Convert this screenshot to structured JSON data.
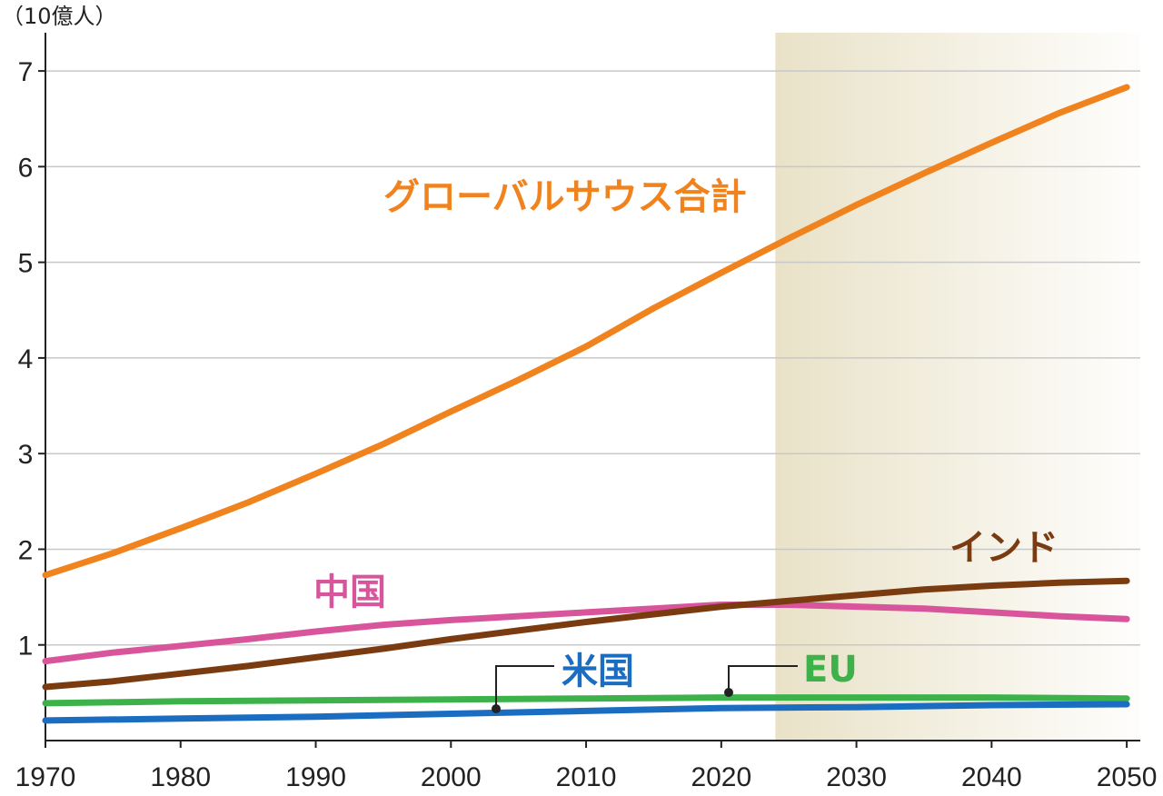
{
  "chart_data": {
    "type": "line",
    "unit_label": "（10億人）",
    "xlim": [
      1970,
      2051
    ],
    "ylim": [
      0,
      7.4
    ],
    "x_ticks": [
      1970,
      1980,
      1990,
      2000,
      2010,
      2020,
      2030,
      2040,
      2050
    ],
    "y_ticks": [
      1,
      2,
      3,
      4,
      5,
      6,
      7
    ],
    "grid": "horizontal",
    "projection_start": 2024,
    "colors": {
      "global_south": "#F0831E",
      "india": "#7A3B10",
      "china": "#D9559B",
      "usa": "#1A6DC0",
      "eu": "#3DB24B",
      "projection_shade": "#E9E2C8"
    },
    "series": [
      {
        "key": "global_south",
        "name": "グローバルサウス合計",
        "x": [
          1970,
          1975,
          1980,
          1985,
          1990,
          1995,
          2000,
          2005,
          2010,
          2015,
          2020,
          2025,
          2030,
          2035,
          2040,
          2045,
          2050
        ],
        "values": [
          1.73,
          1.96,
          2.22,
          2.49,
          2.79,
          3.1,
          3.44,
          3.77,
          4.12,
          4.52,
          4.89,
          5.25,
          5.6,
          5.93,
          6.25,
          6.56,
          6.83
        ]
      },
      {
        "key": "india",
        "name": "インド",
        "x": [
          1970,
          1975,
          1980,
          1985,
          1990,
          1995,
          2000,
          2005,
          2010,
          2015,
          2020,
          2025,
          2030,
          2035,
          2040,
          2045,
          2050
        ],
        "values": [
          0.56,
          0.62,
          0.7,
          0.78,
          0.87,
          0.96,
          1.06,
          1.15,
          1.24,
          1.32,
          1.4,
          1.46,
          1.52,
          1.58,
          1.62,
          1.65,
          1.67
        ]
      },
      {
        "key": "china",
        "name": "中国",
        "x": [
          1970,
          1975,
          1980,
          1985,
          1990,
          1995,
          2000,
          2005,
          2010,
          2015,
          2020,
          2025,
          2030,
          2035,
          2040,
          2045,
          2050
        ],
        "values": [
          0.83,
          0.92,
          0.99,
          1.06,
          1.14,
          1.21,
          1.26,
          1.3,
          1.34,
          1.38,
          1.42,
          1.42,
          1.4,
          1.38,
          1.34,
          1.3,
          1.27
        ]
      },
      {
        "key": "usa",
        "name": "米国",
        "x": [
          1970,
          1980,
          1990,
          2000,
          2010,
          2020,
          2030,
          2040,
          2050
        ],
        "values": [
          0.21,
          0.23,
          0.25,
          0.28,
          0.31,
          0.34,
          0.35,
          0.37,
          0.38
        ]
      },
      {
        "key": "eu",
        "name": "EU",
        "x": [
          1970,
          1980,
          1990,
          2000,
          2010,
          2020,
          2030,
          2040,
          2050
        ],
        "values": [
          0.39,
          0.41,
          0.42,
          0.43,
          0.44,
          0.45,
          0.45,
          0.45,
          0.44
        ]
      }
    ]
  }
}
